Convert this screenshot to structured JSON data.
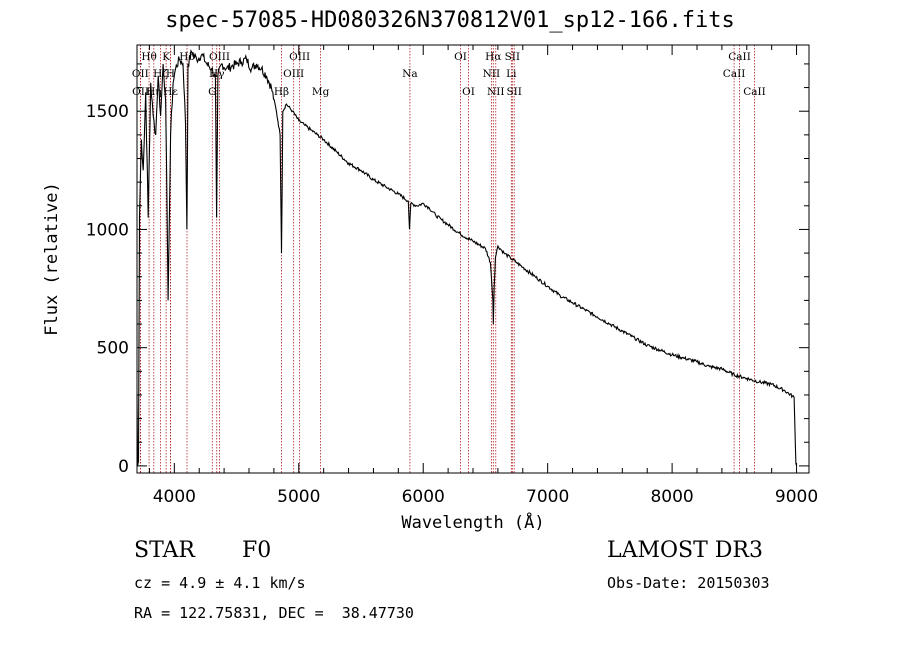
{
  "chart_data": {
    "type": "line",
    "title": "spec-57085-HD080326N370812V01_sp12-166.fits",
    "xlabel": "Wavelength (Å)",
    "ylabel": "Flux (relative)",
    "xlim": [
      3700,
      9100
    ],
    "ylim": [
      -30,
      1780
    ],
    "xticks": [
      4000,
      5000,
      6000,
      7000,
      8000,
      9000
    ],
    "yticks": [
      0,
      500,
      1000,
      1500
    ],
    "series": [
      {
        "name": "flux",
        "x": [
          3700,
          3705,
          3712,
          3720,
          3735,
          3750,
          3770,
          3790,
          3810,
          3830,
          3850,
          3870,
          3890,
          3910,
          3930,
          3950,
          3970,
          3990,
          4010,
          4040,
          4070,
          4090,
          4101,
          4110,
          4140,
          4180,
          4220,
          4260,
          4300,
          4330,
          4340,
          4350,
          4380,
          4420,
          4460,
          4500,
          4540,
          4580,
          4620,
          4660,
          4700,
          4740,
          4780,
          4820,
          4850,
          4861,
          4872,
          4900,
          4950,
          5000,
          5050,
          5100,
          5150,
          5200,
          5300,
          5400,
          5500,
          5600,
          5700,
          5800,
          5880,
          5890,
          5900,
          5950,
          6000,
          6050,
          6100,
          6150,
          6200,
          6300,
          6400,
          6500,
          6540,
          6560,
          6563,
          6570,
          6580,
          6600,
          6650,
          6700,
          6750,
          6800,
          6900,
          7000,
          7100,
          7200,
          7300,
          7400,
          7500,
          7600,
          7700,
          7800,
          7900,
          8000,
          8100,
          8200,
          8300,
          8400,
          8500,
          8600,
          8700,
          8800,
          8900,
          8980,
          8995,
          9000
        ],
        "y": [
          300,
          0,
          20,
          1050,
          1380,
          1250,
          1580,
          1050,
          1620,
          1480,
          1400,
          1650,
          1480,
          1700,
          1550,
          700,
          1400,
          1620,
          1680,
          1720,
          1700,
          1450,
          1000,
          1700,
          1750,
          1720,
          1740,
          1700,
          1680,
          1640,
          1050,
          1650,
          1700,
          1680,
          1690,
          1700,
          1710,
          1720,
          1680,
          1700,
          1680,
          1650,
          1600,
          1500,
          1400,
          900,
          1500,
          1530,
          1500,
          1460,
          1440,
          1420,
          1400,
          1380,
          1330,
          1280,
          1250,
          1210,
          1180,
          1150,
          1120,
          1000,
          1110,
          1100,
          1110,
          1090,
          1060,
          1040,
          1020,
          980,
          950,
          920,
          860,
          700,
          600,
          760,
          880,
          930,
          900,
          880,
          860,
          840,
          800,
          760,
          720,
          690,
          660,
          630,
          600,
          570,
          540,
          510,
          490,
          470,
          455,
          440,
          420,
          410,
          385,
          370,
          355,
          345,
          320,
          290,
          10,
          0
        ]
      }
    ],
    "lines": [
      {
        "label": "Hθ",
        "x": 3797,
        "row": 0
      },
      {
        "label": "OII",
        "x": 3727,
        "row": 1
      },
      {
        "label": "OII",
        "x": 3729,
        "row": 2
      },
      {
        "label": "Hη",
        "x": 3835,
        "row": 2
      },
      {
        "label": "Hζ",
        "x": 3889,
        "row": 1
      },
      {
        "label": "K",
        "x": 3934,
        "row": 0
      },
      {
        "label": "H",
        "x": 3969,
        "row": 1
      },
      {
        "label": "Hε",
        "x": 3970,
        "row": 2
      },
      {
        "label": "Hδ",
        "x": 4102,
        "row": 0
      },
      {
        "label": "G",
        "x": 4305,
        "row": 2
      },
      {
        "label": "OIII",
        "x": 4363,
        "row": 0
      },
      {
        "label": "Hγ",
        "x": 4341,
        "row": 1
      },
      {
        "label": "Hβ",
        "x": 4861,
        "row": 2
      },
      {
        "label": "OIII",
        "x": 4959,
        "row": 1
      },
      {
        "label": "OIII",
        "x": 5007,
        "row": 0
      },
      {
        "label": "Mg",
        "x": 5175,
        "row": 2
      },
      {
        "label": "Na",
        "x": 5893,
        "row": 1
      },
      {
        "label": "OI",
        "x": 6300,
        "row": 0
      },
      {
        "label": "OI",
        "x": 6364,
        "row": 2
      },
      {
        "label": "Hα",
        "x": 6563,
        "row": 0
      },
      {
        "label": "NII",
        "x": 6548,
        "row": 1
      },
      {
        "label": "NII",
        "x": 6583,
        "row": 2
      },
      {
        "label": "Li",
        "x": 6708,
        "row": 1
      },
      {
        "label": "SII",
        "x": 6716,
        "row": 0
      },
      {
        "label": "SII",
        "x": 6731,
        "row": 2
      },
      {
        "label": "CaII",
        "x": 8498,
        "row": 1
      },
      {
        "label": "CaII",
        "x": 8542,
        "row": 0
      },
      {
        "label": "CaII",
        "x": 8662,
        "row": 2
      }
    ],
    "line_color": "#b22222"
  },
  "info": {
    "class_label": "STAR",
    "subclass": "F0",
    "survey": "LAMOST DR3",
    "cz": "cz = 4.9 ± 4.1 km/s",
    "obs_date": "Obs-Date: 20150303",
    "radec": "RA = 122.75831, DEC =  38.47730"
  }
}
